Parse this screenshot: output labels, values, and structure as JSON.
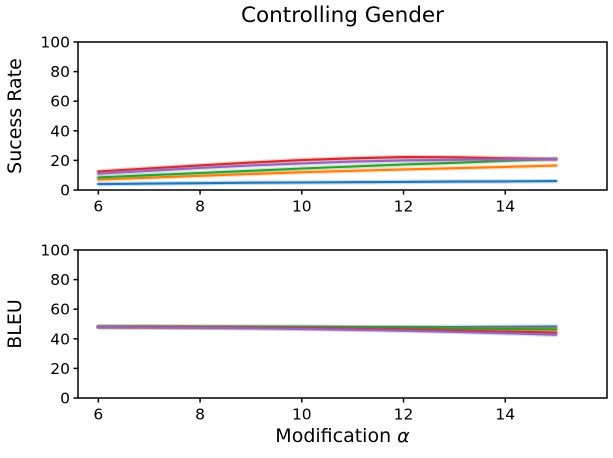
{
  "chart_data": [
    {
      "type": "line",
      "title": "Controlling Gender",
      "xlabel": "",
      "ylabel": "Sucess Rate",
      "x": [
        6,
        7,
        8,
        9,
        10,
        11,
        12,
        13,
        14,
        15
      ],
      "xlim": [
        5.6,
        16.0
      ],
      "ylim": [
        0,
        100
      ],
      "xticks": [
        6,
        8,
        10,
        12,
        14
      ],
      "yticks": [
        0,
        20,
        40,
        60,
        80,
        100
      ],
      "grid": false,
      "legend": "none",
      "series": [
        {
          "name": "line-blue",
          "color": "#1f77b4",
          "values": [
            4.0,
            4.3,
            4.6,
            4.9,
            5.1,
            5.3,
            5.5,
            5.7,
            5.8,
            6.0
          ]
        },
        {
          "name": "line-orange",
          "color": "#ff7f0e",
          "values": [
            7.0,
            8.3,
            9.6,
            10.8,
            12.0,
            13.0,
            13.9,
            14.7,
            15.6,
            16.5
          ]
        },
        {
          "name": "line-green",
          "color": "#2ca02c",
          "values": [
            8.5,
            10.0,
            11.5,
            13.0,
            14.5,
            15.9,
            17.2,
            18.4,
            19.7,
            21.0
          ]
        },
        {
          "name": "line-red",
          "color": "#d62728",
          "values": [
            12.5,
            14.6,
            16.6,
            18.5,
            20.2,
            21.4,
            22.2,
            22.1,
            21.4,
            20.8
          ]
        },
        {
          "name": "line-purple",
          "color": "#9467bd",
          "values": [
            11.0,
            13.0,
            14.9,
            16.6,
            18.0,
            19.2,
            20.0,
            20.4,
            20.6,
            20.8
          ]
        }
      ]
    },
    {
      "type": "line",
      "title": "",
      "xlabel": "Modification α",
      "ylabel": "BLEU",
      "x": [
        6,
        7,
        8,
        9,
        10,
        11,
        12,
        13,
        14,
        15
      ],
      "xlim": [
        5.6,
        16.0
      ],
      "ylim": [
        0,
        100
      ],
      "xticks": [
        6,
        8,
        10,
        12,
        14
      ],
      "yticks": [
        0,
        20,
        40,
        60,
        80,
        100
      ],
      "grid": false,
      "legend": "none",
      "series": [
        {
          "name": "line-blue",
          "color": "#1f77b4",
          "values": [
            48.2,
            48.2,
            48.1,
            48.1,
            48.1,
            48.0,
            48.0,
            48.0,
            48.1,
            48.3
          ]
        },
        {
          "name": "line-orange",
          "color": "#ff7f0e",
          "values": [
            48.1,
            48.0,
            47.9,
            47.8,
            47.6,
            47.5,
            47.3,
            47.1,
            46.9,
            46.8
          ]
        },
        {
          "name": "line-green",
          "color": "#2ca02c",
          "values": [
            48.1,
            48.1,
            48.0,
            47.9,
            47.8,
            47.6,
            47.4,
            47.0,
            46.6,
            46.3
          ]
        },
        {
          "name": "line-red",
          "color": "#d62728",
          "values": [
            48.0,
            47.9,
            47.7,
            47.4,
            47.1,
            46.7,
            46.2,
            45.6,
            44.9,
            44.2
          ]
        },
        {
          "name": "line-purple",
          "color": "#9467bd",
          "values": [
            47.9,
            47.7,
            47.5,
            47.1,
            46.7,
            46.1,
            45.4,
            44.6,
            43.7,
            42.7
          ]
        }
      ]
    }
  ],
  "colors": {
    "axis": "#000000",
    "text": "#000000",
    "background": "#ffffff"
  }
}
